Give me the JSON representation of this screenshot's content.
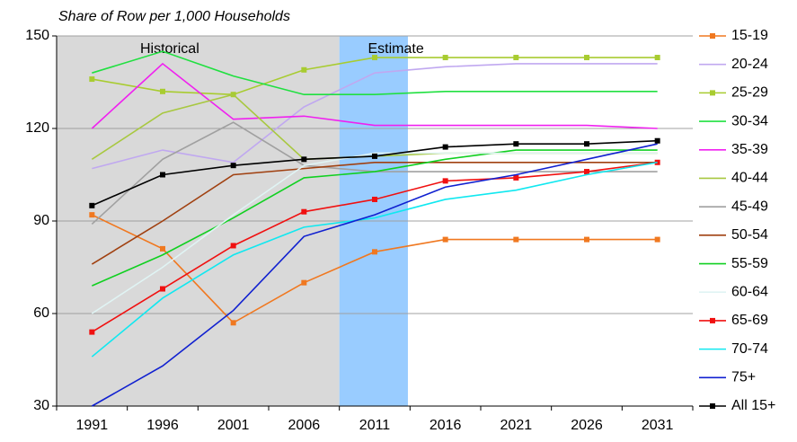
{
  "chart_data": {
    "type": "line",
    "title": "Share of Row per 1,000 Households",
    "annotations": [
      "Historical",
      "Estimate"
    ],
    "categories": [
      "1991",
      "1996",
      "2001",
      "2006",
      "2011",
      "2016",
      "2021",
      "2026",
      "2031"
    ],
    "ylim": [
      30,
      150
    ],
    "yticks": [
      30,
      60,
      90,
      120,
      150
    ],
    "grid": true,
    "legend": "right",
    "series": [
      {
        "name": "15-19",
        "color": "#f07820",
        "marker": true,
        "values": [
          92,
          81,
          57,
          70,
          80,
          84,
          84,
          84,
          84
        ]
      },
      {
        "name": "20-24",
        "color": "#c0a8f0",
        "marker": false,
        "values": [
          107,
          113,
          109,
          127,
          138,
          140,
          141,
          141,
          141
        ]
      },
      {
        "name": "25-29",
        "color": "#a8cc30",
        "marker": true,
        "values": [
          136,
          132,
          131,
          139,
          143,
          143,
          143,
          143,
          143
        ]
      },
      {
        "name": "30-34",
        "color": "#20e040",
        "marker": false,
        "values": [
          138,
          145,
          137,
          131,
          131,
          132,
          132,
          132,
          132
        ]
      },
      {
        "name": "35-39",
        "color": "#f020f0",
        "marker": false,
        "values": [
          120,
          141,
          123,
          124,
          121,
          121,
          121,
          121,
          120
        ]
      },
      {
        "name": "40-44",
        "color": "#a8c840",
        "marker": false,
        "values": [
          110,
          125,
          131,
          110,
          111,
          112,
          112,
          112,
          112
        ]
      },
      {
        "name": "45-49",
        "color": "#a0a0a0",
        "marker": false,
        "values": [
          89,
          110,
          122,
          108,
          106,
          106,
          106,
          106,
          106
        ]
      },
      {
        "name": "50-54",
        "color": "#a04010",
        "marker": false,
        "values": [
          76,
          90,
          105,
          107,
          109,
          109,
          109,
          109,
          109
        ]
      },
      {
        "name": "55-59",
        "color": "#10d020",
        "marker": false,
        "values": [
          69,
          79,
          91,
          104,
          106,
          110,
          113,
          113,
          113
        ]
      },
      {
        "name": "60-64",
        "color": "#e0f4f4",
        "marker": false,
        "values": [
          60,
          75,
          92,
          108,
          112,
          112,
          112,
          112,
          112
        ]
      },
      {
        "name": "65-69",
        "color": "#f01010",
        "marker": true,
        "values": [
          54,
          68,
          82,
          93,
          97,
          103,
          104,
          106,
          109
        ]
      },
      {
        "name": "70-74",
        "color": "#10e8f0",
        "marker": false,
        "values": [
          46,
          65,
          79,
          88,
          91,
          97,
          100,
          105,
          109
        ]
      },
      {
        "name": "75+",
        "color": "#1020d0",
        "marker": false,
        "values": [
          30,
          43,
          61,
          85,
          92,
          101,
          105,
          110,
          115
        ]
      },
      {
        "name": "All 15+",
        "color": "#000000",
        "marker": true,
        "values": [
          95,
          105,
          108,
          110,
          111,
          114,
          115,
          115,
          116
        ]
      }
    ]
  }
}
